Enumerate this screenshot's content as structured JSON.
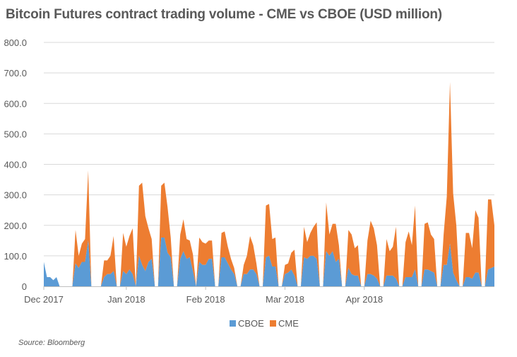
{
  "chart_data": {
    "type": "area",
    "stacked": true,
    "title": "Bitcoin Futures contract trading volume - CME vs CBOE (USD million)",
    "source": "Source: Bloomberg",
    "ylim": [
      0,
      800
    ],
    "yticks": [
      "0",
      "100.0",
      "200.0",
      "300.0",
      "400.0",
      "500.0",
      "600.0",
      "700.0",
      "800.0"
    ],
    "xticks": [
      {
        "label": "Dec 2017",
        "x": 0
      },
      {
        "label": "Jan 2018",
        "x": 26
      },
      {
        "label": "Feb 2018",
        "x": 51
      },
      {
        "label": "Mar 2018",
        "x": 76
      },
      {
        "label": "Apr 2018",
        "x": 101
      }
    ],
    "legend": {
      "position": "bottom"
    },
    "grid": true,
    "colors": {
      "CBOE": "#5b9bd5",
      "CME": "#ed7d31",
      "grid": "#d9d9d9",
      "axis": "#bfbfbf",
      "text": "#595959"
    },
    "series": [
      {
        "name": "CBOE",
        "values": [
          80,
          30,
          30,
          20,
          30,
          0,
          0,
          0,
          0,
          0,
          75,
          60,
          80,
          80,
          150,
          0,
          0,
          0,
          0,
          30,
          40,
          40,
          50,
          0,
          0,
          50,
          40,
          55,
          40,
          0,
          100,
          70,
          50,
          80,
          90,
          0,
          0,
          160,
          160,
          110,
          95,
          0,
          0,
          90,
          115,
          90,
          95,
          50,
          0,
          80,
          70,
          70,
          90,
          90,
          0,
          0,
          95,
          95,
          75,
          55,
          40,
          0,
          0,
          40,
          40,
          55,
          55,
          40,
          0,
          0,
          95,
          100,
          65,
          65,
          0,
          0,
          40,
          45,
          55,
          35,
          0,
          0,
          95,
          90,
          100,
          100,
          90,
          0,
          0,
          115,
          100,
          115,
          80,
          90,
          0,
          0,
          60,
          40,
          35,
          35,
          0,
          0,
          40,
          40,
          35,
          25,
          0,
          0,
          35,
          35,
          35,
          25,
          0,
          0,
          30,
          30,
          30,
          55,
          0,
          0,
          55,
          55,
          50,
          45,
          0,
          0,
          70,
          70,
          140,
          45,
          20,
          0,
          0,
          30,
          30,
          25,
          45,
          45,
          0,
          0,
          55,
          60,
          65
        ]
      },
      {
        "name": "CME",
        "values": [
          0,
          0,
          0,
          0,
          0,
          0,
          0,
          0,
          0,
          0,
          110,
          40,
          60,
          75,
          230,
          0,
          0,
          0,
          0,
          55,
          45,
          60,
          115,
          0,
          0,
          125,
          90,
          110,
          150,
          0,
          230,
          270,
          180,
          110,
          65,
          0,
          0,
          170,
          180,
          150,
          65,
          0,
          0,
          80,
          105,
          65,
          55,
          55,
          0,
          80,
          75,
          70,
          60,
          60,
          0,
          0,
          80,
          85,
          55,
          35,
          20,
          0,
          0,
          30,
          60,
          110,
          80,
          35,
          0,
          0,
          170,
          170,
          90,
          95,
          0,
          0,
          30,
          30,
          55,
          85,
          0,
          0,
          100,
          55,
          75,
          95,
          120,
          0,
          0,
          160,
          70,
          90,
          125,
          45,
          0,
          0,
          125,
          130,
          90,
          100,
          0,
          0,
          110,
          175,
          155,
          110,
          0,
          0,
          120,
          80,
          95,
          170,
          0,
          0,
          115,
          150,
          105,
          210,
          0,
          0,
          150,
          155,
          120,
          110,
          0,
          0,
          100,
          225,
          530,
          260,
          180,
          0,
          0,
          145,
          145,
          100,
          205,
          180,
          0,
          0,
          230,
          225,
          135
        ]
      }
    ]
  }
}
